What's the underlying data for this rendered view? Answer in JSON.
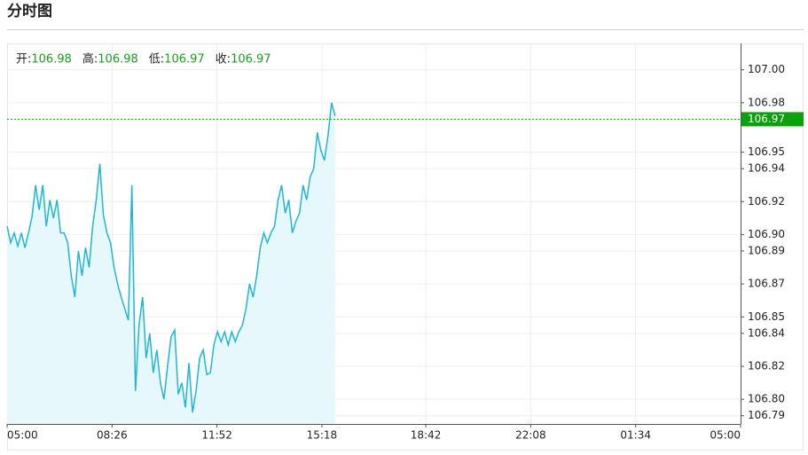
{
  "chart_data": {
    "type": "line",
    "title": "分时图",
    "stats": [
      {
        "label": "开:",
        "value": 106.98
      },
      {
        "label": "高:",
        "value": 106.98
      },
      {
        "label": "低:",
        "value": 106.97
      },
      {
        "label": "收:",
        "value": 106.97
      }
    ],
    "last_price": 106.97,
    "color": "#1fb6d5",
    "fill_color": "#e6f8fb",
    "badge_color": "#0aa20a",
    "stat_color": "#1a9e1a",
    "grid": true,
    "xlim": [
      0,
      1440
    ],
    "xticks": [
      {
        "value": 0,
        "label": "05:00"
      },
      {
        "value": 206,
        "label": "08:26"
      },
      {
        "value": 412,
        "label": "11:52"
      },
      {
        "value": 618,
        "label": "15:18"
      },
      {
        "value": 822,
        "label": "18:42"
      },
      {
        "value": 1028,
        "label": "22:08"
      },
      {
        "value": 1234,
        "label": "01:34"
      },
      {
        "value": 1440,
        "label": "05:00"
      }
    ],
    "ylim": [
      106.785,
      107.016
    ],
    "yticks": [
      {
        "value": 107,
        "label": "107.00"
      },
      106.98,
      106.95,
      106.94,
      106.92,
      {
        "value": 106.9,
        "label": "106.90"
      },
      106.89,
      106.87,
      106.85,
      106.84,
      106.82,
      {
        "value": 106.8,
        "label": "106.80"
      },
      106.79
    ],
    "x": [
      0,
      7,
      14,
      21,
      28,
      35,
      42,
      49,
      56,
      63,
      70,
      77,
      84,
      91,
      98,
      105,
      112,
      119,
      126,
      133,
      140,
      147,
      154,
      161,
      168,
      175,
      182,
      189,
      196,
      203,
      210,
      217,
      224,
      231,
      238,
      245,
      252,
      259,
      266,
      273,
      280,
      287,
      294,
      301,
      308,
      315,
      322,
      329,
      336,
      343,
      350,
      357,
      364,
      371,
      378,
      385,
      392,
      399,
      406,
      413,
      420,
      427,
      434,
      441,
      448,
      455,
      462,
      469,
      476,
      483,
      490,
      497,
      504,
      511,
      518,
      525,
      532,
      539,
      546,
      553,
      560,
      567,
      574,
      581,
      588,
      595,
      602,
      609,
      616,
      623,
      630,
      637,
      644
    ],
    "values": [
      106.905,
      106.895,
      106.901,
      106.893,
      106.901,
      106.892,
      106.901,
      106.911,
      106.93,
      106.915,
      106.93,
      106.905,
      106.921,
      106.91,
      106.921,
      106.901,
      106.901,
      106.895,
      106.875,
      106.862,
      106.89,
      106.875,
      106.892,
      106.88,
      106.905,
      106.921,
      106.943,
      106.912,
      106.901,
      106.895,
      106.88,
      106.87,
      106.862,
      106.855,
      106.848,
      106.93,
      106.805,
      106.845,
      106.862,
      106.825,
      106.84,
      106.816,
      106.83,
      106.81,
      106.8,
      106.82,
      106.838,
      106.842,
      106.803,
      106.81,
      106.795,
      106.822,
      106.792,
      106.805,
      106.825,
      106.83,
      106.815,
      106.816,
      106.833,
      106.841,
      106.835,
      106.841,
      106.833,
      106.841,
      106.835,
      106.841,
      106.845,
      106.855,
      106.87,
      106.862,
      106.875,
      106.892,
      106.901,
      106.895,
      106.901,
      106.905,
      106.921,
      106.93,
      106.913,
      106.921,
      106.901,
      106.908,
      106.913,
      106.93,
      106.921,
      106.935,
      106.94,
      106.962,
      106.951,
      106.945,
      106.96,
      106.98,
      106.972
    ]
  }
}
